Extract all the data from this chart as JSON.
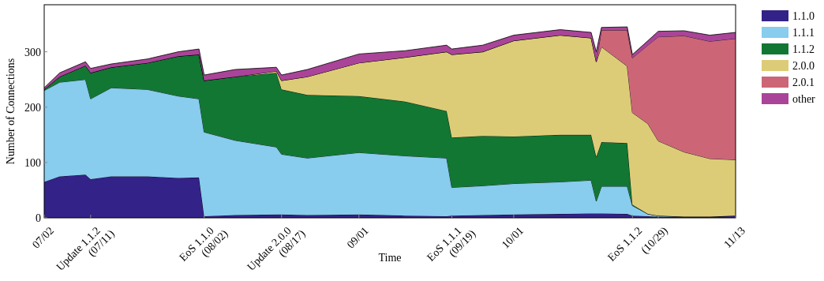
{
  "chart_data": {
    "type": "area",
    "stacked": true,
    "xlabel": "Time",
    "ylabel": "Number of Connections",
    "x": [
      "--07-02",
      "--07-05",
      "--07-10",
      "--07-11",
      "--07-15",
      "--07-22",
      "--07-28",
      "--08-01",
      "--08-02",
      "--08-08",
      "--08-16",
      "--08-17",
      "--08-22",
      "--09-01",
      "--09-10",
      "--09-18",
      "--09-19",
      "--09-25",
      "--10-01",
      "--10-10",
      "--10-16",
      "--10-17",
      "--10-18",
      "--10-23",
      "--10-24",
      "--10-27",
      "--10-29",
      "--11-03",
      "--11-08",
      "--11-13"
    ],
    "series": [
      {
        "name": "1.1.0",
        "color": "#332288",
        "values": [
          65,
          75,
          78,
          70,
          75,
          75,
          72,
          73,
          3,
          5,
          6,
          6,
          5,
          6,
          4,
          3,
          4,
          5,
          6,
          7,
          8,
          8,
          8,
          7,
          4,
          3,
          2,
          2,
          2,
          4
        ]
      },
      {
        "name": "1.1.1",
        "color": "#88ccee",
        "values": [
          165,
          170,
          172,
          145,
          160,
          157,
          148,
          142,
          152,
          135,
          122,
          109,
          103,
          112,
          108,
          105,
          51,
          53,
          56,
          58,
          60,
          22,
          49,
          50,
          18,
          4,
          2,
          0,
          0,
          0
        ]
      },
      {
        "name": "1.1.2",
        "color": "#117733",
        "values": [
          2,
          10,
          25,
          47,
          37,
          48,
          72,
          80,
          93,
          115,
          134,
          117,
          114,
          102,
          98,
          85,
          90,
          90,
          85,
          85,
          82,
          80,
          80,
          78,
          2,
          0,
          0,
          0,
          0,
          0
        ]
      },
      {
        "name": "2.0.0",
        "color": "#ddcc77",
        "values": [
          0,
          0,
          0,
          0,
          0,
          0,
          0,
          0,
          0,
          0,
          3,
          16,
          33,
          60,
          80,
          107,
          150,
          152,
          173,
          180,
          175,
          172,
          172,
          139,
          166,
          163,
          135,
          117,
          105,
          101
        ]
      },
      {
        "name": "2.0.1",
        "color": "#cc6677",
        "values": [
          0,
          0,
          0,
          0,
          0,
          0,
          0,
          0,
          0,
          0,
          0,
          0,
          0,
          0,
          0,
          0,
          0,
          0,
          0,
          0,
          0,
          0,
          30,
          65,
          99,
          142,
          188,
          210,
          212,
          219
        ]
      },
      {
        "name": "other",
        "color": "#aa4499",
        "values": [
          3,
          7,
          7,
          8,
          6,
          7,
          8,
          10,
          10,
          13,
          7,
          10,
          13,
          16,
          12,
          12,
          10,
          12,
          10,
          10,
          10,
          18,
          5,
          6,
          6,
          8,
          10,
          9,
          11,
          11
        ]
      }
    ],
    "xlim": [
      "--07-02",
      "--11-13"
    ],
    "xticks": [
      {
        "value": "--07-02",
        "label": "07/02"
      },
      {
        "value": "--07-11",
        "label": "Update 1.1.2\n(07/11)"
      },
      {
        "value": "--08-02",
        "label": "EoS 1.1.0\n(08/02)"
      },
      {
        "value": "--08-17",
        "label": "Update 2.0.0\n(08/17)"
      },
      {
        "value": "--09-01",
        "label": "09/01"
      },
      {
        "value": "--09-19",
        "label": "EoS 1.1.1\n(09/19)"
      },
      {
        "value": "--10-01",
        "label": "10/01"
      },
      {
        "value": "--10-24",
        "label": "EoS 1.1.2"
      },
      {
        "value": "--10-29",
        "label": "(10/29)"
      },
      {
        "value": "--11-13",
        "label": "11/13"
      }
    ],
    "ylim": [
      0,
      385
    ],
    "yticks": [
      0,
      100,
      200,
      300
    ],
    "legend": "right"
  }
}
